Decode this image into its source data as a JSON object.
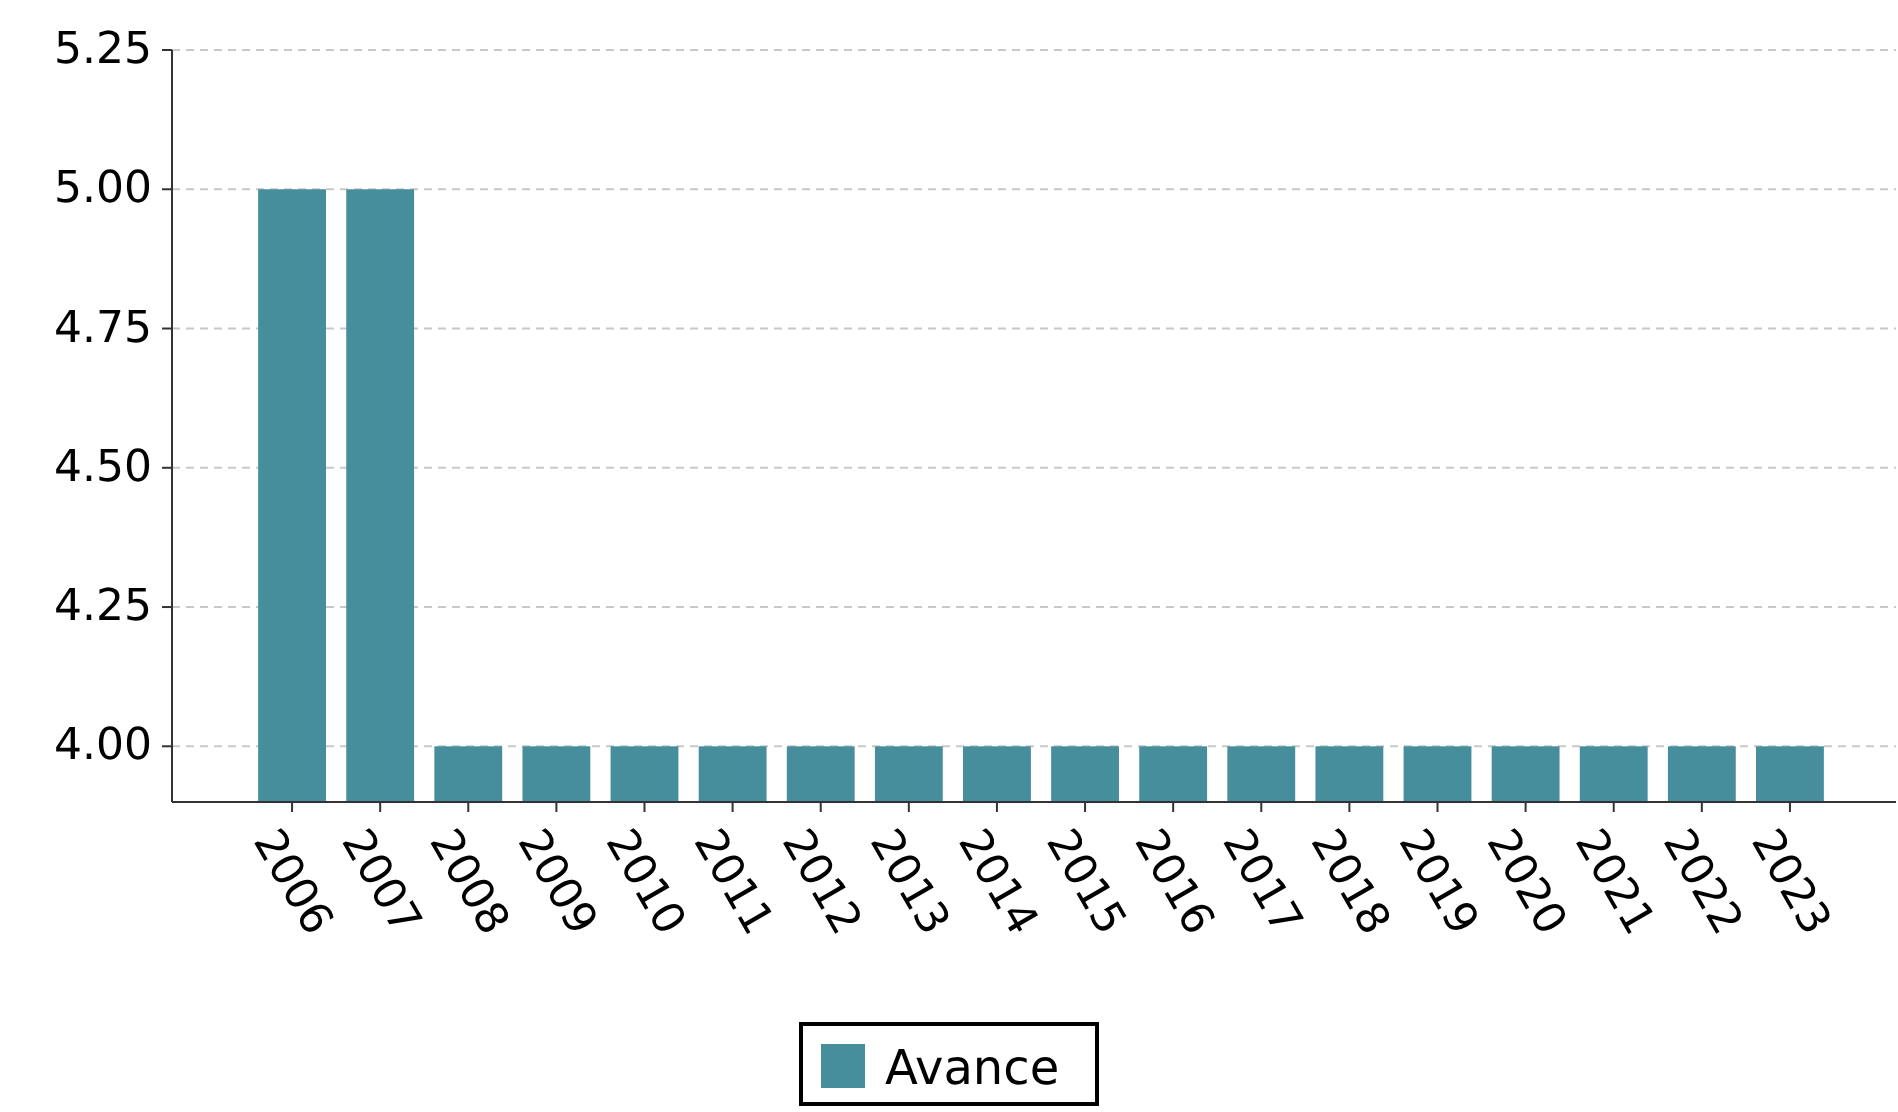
{
  "chart_data": {
    "type": "bar",
    "categories": [
      "2006",
      "2007",
      "2008",
      "2009",
      "2010",
      "2011",
      "2012",
      "2013",
      "2014",
      "2015",
      "2016",
      "2017",
      "2018",
      "2019",
      "2020",
      "2021",
      "2022",
      "2023"
    ],
    "series": [
      {
        "name": "Avance",
        "color": "#468e9b",
        "values": [
          5,
          5,
          4,
          4,
          4,
          4,
          4,
          4,
          4,
          4,
          4,
          4,
          4,
          4,
          4,
          4,
          4,
          4
        ]
      }
    ],
    "ylim": [
      3.9,
      5.25
    ],
    "yticks": [
      {
        "value": 4,
        "label": "4.00"
      },
      {
        "value": 4.25,
        "label": "4.25"
      },
      {
        "value": 4.5,
        "label": "4.50"
      },
      {
        "value": 4.75,
        "label": "4.75"
      },
      {
        "value": 5,
        "label": "5.00"
      },
      {
        "value": 5.25,
        "label": "5.25"
      }
    ],
    "grid": "y",
    "legend": "bottom"
  }
}
